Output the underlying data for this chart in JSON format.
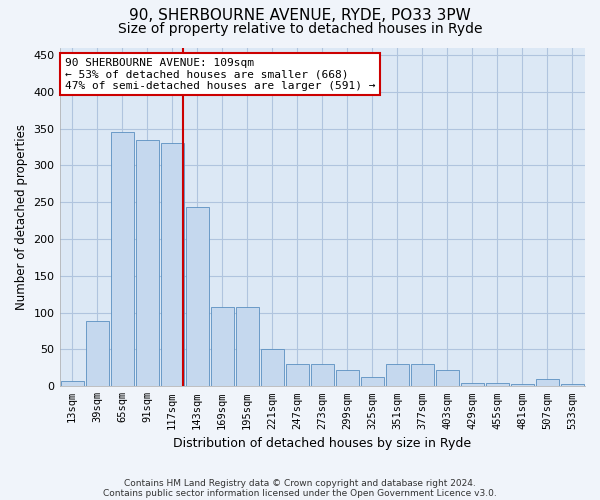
{
  "title1": "90, SHERBOURNE AVENUE, RYDE, PO33 3PW",
  "title2": "Size of property relative to detached houses in Ryde",
  "xlabel": "Distribution of detached houses by size in Ryde",
  "ylabel": "Number of detached properties",
  "footnote1": "Contains HM Land Registry data © Crown copyright and database right 2024.",
  "footnote2": "Contains public sector information licensed under the Open Government Licence v3.0.",
  "annotation_line1": "90 SHERBOURNE AVENUE: 109sqm",
  "annotation_line2": "← 53% of detached houses are smaller (668)",
  "annotation_line3": "47% of semi-detached houses are larger (591) →",
  "bar_categories": [
    "13sqm",
    "39sqm",
    "65sqm",
    "91sqm",
    "117sqm",
    "143sqm",
    "169sqm",
    "195sqm",
    "221sqm",
    "247sqm",
    "273sqm",
    "299sqm",
    "325sqm",
    "351sqm",
    "377sqm",
    "403sqm",
    "429sqm",
    "455sqm",
    "481sqm",
    "507sqm",
    "533sqm"
  ],
  "bar_values": [
    7,
    88,
    345,
    335,
    330,
    243,
    108,
    108,
    50,
    30,
    30,
    22,
    12,
    30,
    30,
    22,
    5,
    5,
    3,
    10,
    3
  ],
  "bar_color": "#c5d8ee",
  "bar_edge_color": "#5a8fc0",
  "vline_color": "#cc0000",
  "vline_x": 4.5,
  "box_color": "#cc0000",
  "ylim": [
    0,
    460
  ],
  "yticks": [
    0,
    50,
    100,
    150,
    200,
    250,
    300,
    350,
    400,
    450
  ],
  "bg_color": "#dce8f5",
  "plot_bg_color": "#dce8f5",
  "grid_color": "#b0c4de",
  "title1_fontsize": 11,
  "title2_fontsize": 10
}
